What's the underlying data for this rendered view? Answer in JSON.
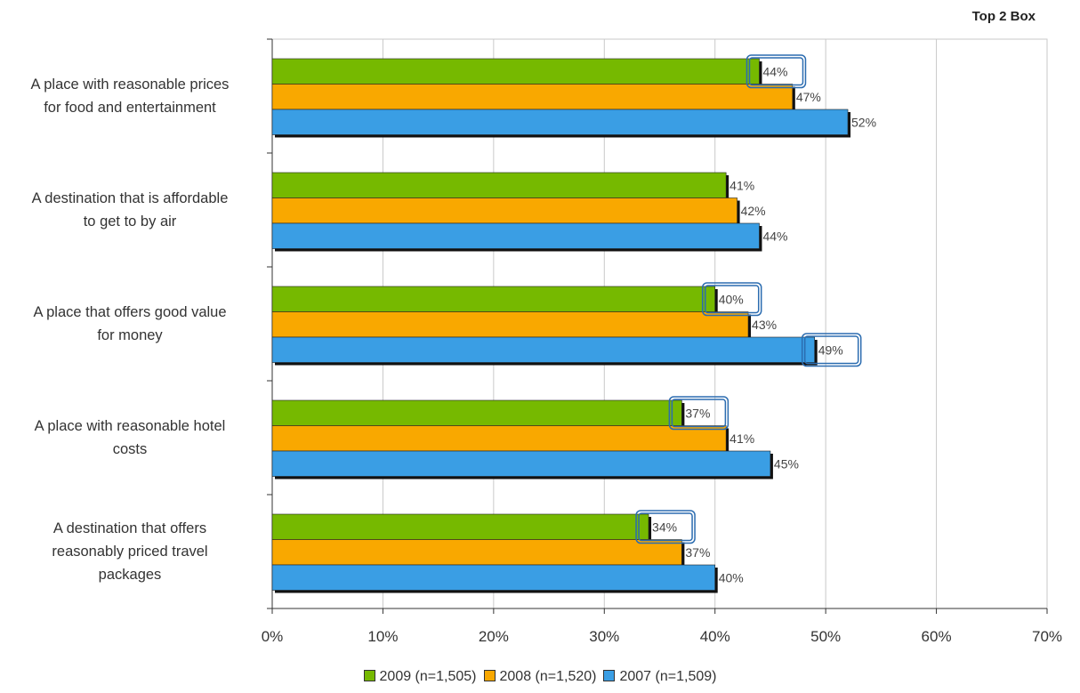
{
  "corner_title": "Top 2 Box",
  "chart_data": {
    "type": "bar",
    "orientation": "horizontal",
    "categories": [
      "A place with reasonable prices for food and entertainment",
      "A destination that is affordable to get to by air",
      "A place that offers good value for money",
      "A place with reasonable hotel costs",
      "A destination that offers reasonably priced travel packages"
    ],
    "category_lines": [
      [
        "A place with reasonable prices",
        "for food and entertainment"
      ],
      [
        "A destination that is affordable",
        "to get to by air"
      ],
      [
        "A place that offers good value",
        "for money"
      ],
      [
        "A place with reasonable hotel",
        "costs"
      ],
      [
        "A destination that offers",
        "reasonably priced travel",
        "packages"
      ]
    ],
    "series": [
      {
        "name": "2009 (n=1,505)",
        "color": "#76b900",
        "values": [
          44,
          41,
          40,
          37,
          34
        ]
      },
      {
        "name": "2008 (n=1,520)",
        "color": "#f9a800",
        "values": [
          47,
          42,
          43,
          41,
          37
        ]
      },
      {
        "name": "2007 (n=1,509)",
        "color": "#3a9ee4",
        "values": [
          52,
          44,
          49,
          45,
          40
        ]
      }
    ],
    "data_labels": [
      [
        "44%",
        "41%",
        "40%",
        "37%",
        "34%"
      ],
      [
        "47%",
        "42%",
        "43%",
        "41%",
        "37%"
      ],
      [
        "52%",
        "44%",
        "49%",
        "45%",
        "40%"
      ]
    ],
    "highlighted": [
      {
        "series": 0,
        "category": 0
      },
      {
        "series": 0,
        "category": 2
      },
      {
        "series": 2,
        "category": 2
      },
      {
        "series": 0,
        "category": 3
      },
      {
        "series": 0,
        "category": 4
      }
    ],
    "xlim": [
      0,
      70
    ],
    "x_ticks": [
      0,
      10,
      20,
      30,
      40,
      50,
      60,
      70
    ],
    "x_tick_labels": [
      "0%",
      "10%",
      "20%",
      "30%",
      "40%",
      "50%",
      "60%",
      "70%"
    ],
    "grid": true,
    "legend_position": "bottom",
    "highlight_color": "#2b6cb0"
  }
}
